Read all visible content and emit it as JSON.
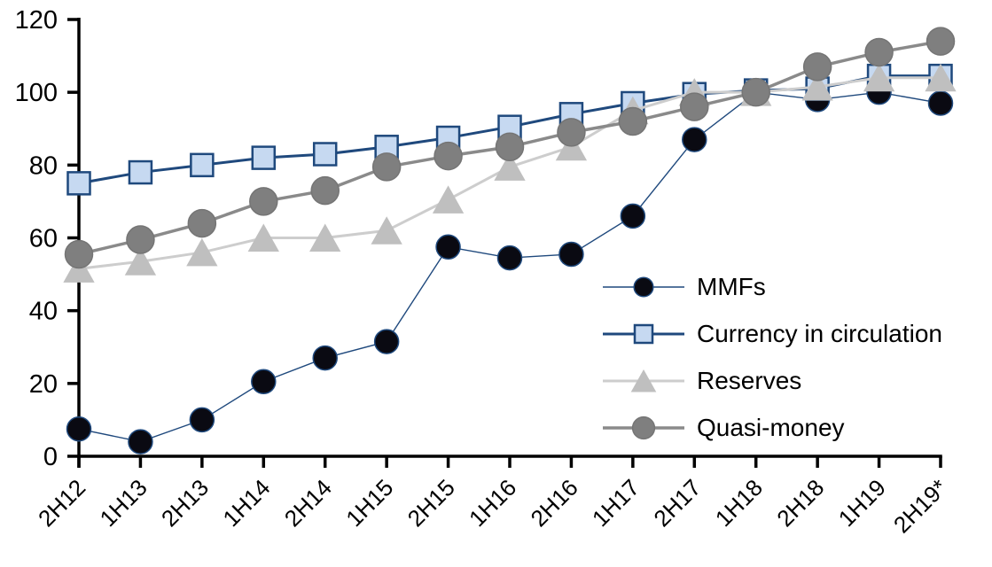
{
  "chart_data": {
    "type": "line",
    "title": "",
    "xlabel": "",
    "ylabel": "",
    "categories": [
      "2H12",
      "1H13",
      "2H13",
      "1H14",
      "2H14",
      "1H15",
      "2H15",
      "1H16",
      "2H16",
      "1H17",
      "2H17",
      "1H18",
      "2H18",
      "1H19",
      "2H19*"
    ],
    "series": [
      {
        "name": "MMFs",
        "marker": "circle",
        "marker_fill": "#0a0a12",
        "marker_edge": "#1F497D",
        "line_color": "#1F497D",
        "line_width": 1.4,
        "marker_size": 27,
        "values": [
          7.5,
          4,
          10,
          20.5,
          27,
          31.5,
          57.5,
          54.5,
          55.5,
          66,
          87,
          100,
          98,
          100,
          97
        ]
      },
      {
        "name": "Currency in circulation",
        "marker": "square",
        "marker_fill": "#C6D9F1",
        "marker_edge": "#1F497D",
        "line_color": "#1F497D",
        "line_width": 3,
        "marker_size": 25,
        "values": [
          75,
          78,
          80,
          82,
          83,
          85,
          87.5,
          90.5,
          94,
          97,
          99.5,
          100.5,
          101,
          104.5,
          104.5
        ]
      },
      {
        "name": "Reserves",
        "marker": "triangle",
        "marker_fill": "#BFBFBF",
        "marker_edge": "#BFBFBF",
        "line_color": "#CDCDCD",
        "line_width": 3,
        "marker_size": 30,
        "values": [
          51.5,
          53.5,
          56,
          60,
          60,
          62,
          70.5,
          79.5,
          85,
          95,
          100,
          100,
          101.5,
          104,
          104
        ]
      },
      {
        "name": "Quasi-money",
        "marker": "circle",
        "marker_fill": "#7F7F7F",
        "marker_edge": "#757575",
        "line_color": "#8A8A8A",
        "line_width": 3.5,
        "marker_size": 31,
        "values": [
          55.5,
          59.5,
          64,
          70,
          73,
          79.5,
          82.5,
          85,
          89,
          92,
          96,
          100,
          107,
          111,
          114
        ]
      }
    ],
    "ylim": [
      0,
      120
    ],
    "yticks": [
      0,
      20,
      40,
      60,
      80,
      100,
      120
    ],
    "grid": false,
    "legend_position": "inside-right",
    "axis_color": "#000000"
  }
}
